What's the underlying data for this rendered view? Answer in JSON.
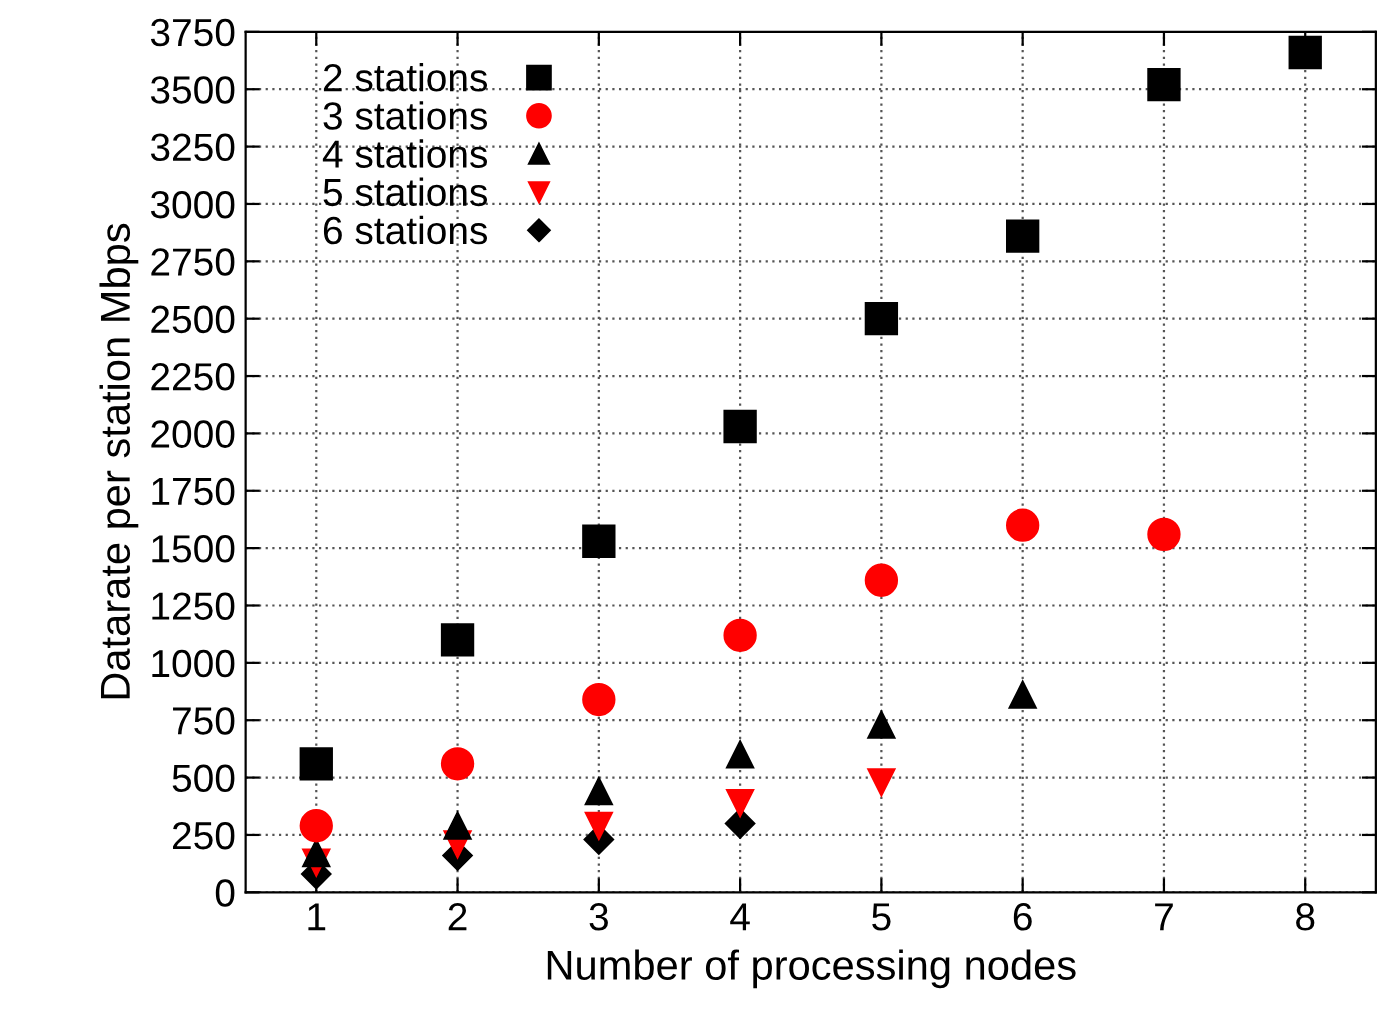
{
  "chart_data": {
    "type": "scatter",
    "xlabel": "Number of processing nodes",
    "ylabel": "Datarate per station Mbps",
    "xlim": [
      0.5,
      8.5
    ],
    "xticks": [
      1,
      2,
      3,
      4,
      5,
      6,
      7,
      8
    ],
    "ylim": [
      0,
      3750
    ],
    "yticks": [
      0,
      250,
      500,
      750,
      1000,
      1250,
      1500,
      1750,
      2000,
      2250,
      2500,
      2750,
      3000,
      3250,
      3500,
      3750
    ],
    "grid": true,
    "legend": "top left",
    "series": [
      {
        "name": "2 stations",
        "color": "#000000",
        "marker": "square",
        "x": [
          1,
          2,
          3,
          4,
          5,
          6,
          7,
          8
        ],
        "values": [
          560,
          1100,
          1530,
          2030,
          2500,
          2860,
          3520,
          3660
        ]
      },
      {
        "name": "3 stations",
        "color": "#ff0000",
        "marker": "circle",
        "x": [
          1,
          2,
          3,
          4,
          5,
          6,
          7
        ],
        "values": [
          290,
          560,
          840,
          1120,
          1360,
          1600,
          1560
        ]
      },
      {
        "name": "4 stations",
        "color": "#000000",
        "marker": "triangle",
        "x": [
          1,
          2,
          3,
          4,
          5,
          6
        ],
        "values": [
          170,
          290,
          440,
          600,
          730,
          860
        ]
      },
      {
        "name": "5 stations",
        "color": "#ff0000",
        "marker": "triangle_down",
        "x": [
          1,
          2,
          3,
          4,
          5
        ],
        "values": [
          130,
          210,
          290,
          390,
          480
        ]
      },
      {
        "name": "6 stations",
        "color": "#000000",
        "marker": "diamond",
        "x": [
          1,
          2,
          3,
          4
        ],
        "values": [
          80,
          160,
          230,
          300
        ]
      }
    ]
  }
}
